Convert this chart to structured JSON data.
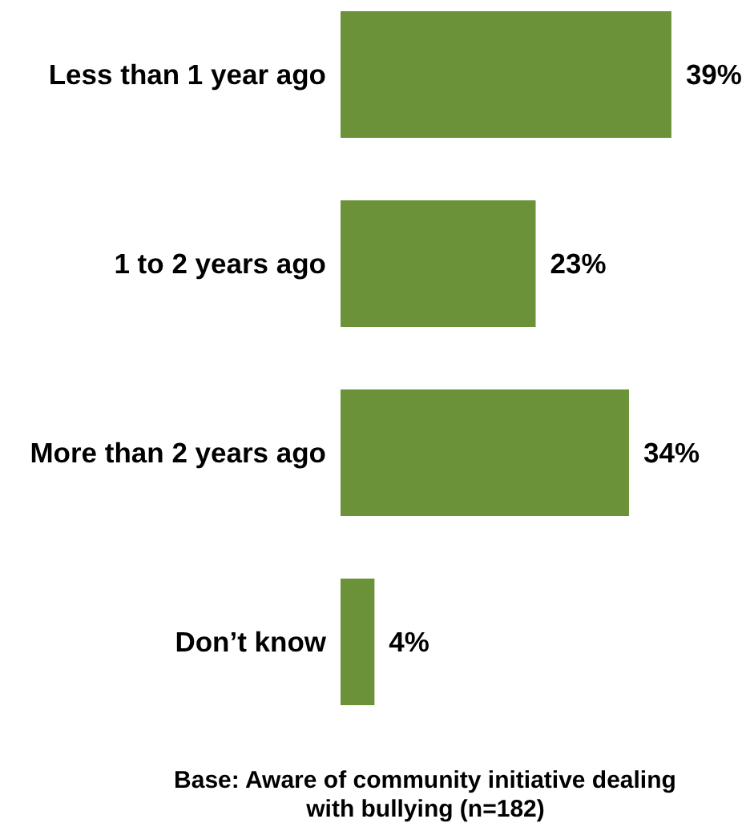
{
  "chart_data": {
    "type": "bar",
    "orientation": "horizontal",
    "categories": [
      "Less than 1 year ago",
      "1 to 2 years ago",
      "More than 2 years ago",
      "Don’t know"
    ],
    "values": [
      39,
      23,
      34,
      4
    ],
    "value_labels": [
      "39%",
      "23%",
      "34%",
      "4%"
    ],
    "color": "#6b9239",
    "annotations": [
      "Base: Aware of community initiative dealing\nwith bullying (n=182)"
    ]
  }
}
